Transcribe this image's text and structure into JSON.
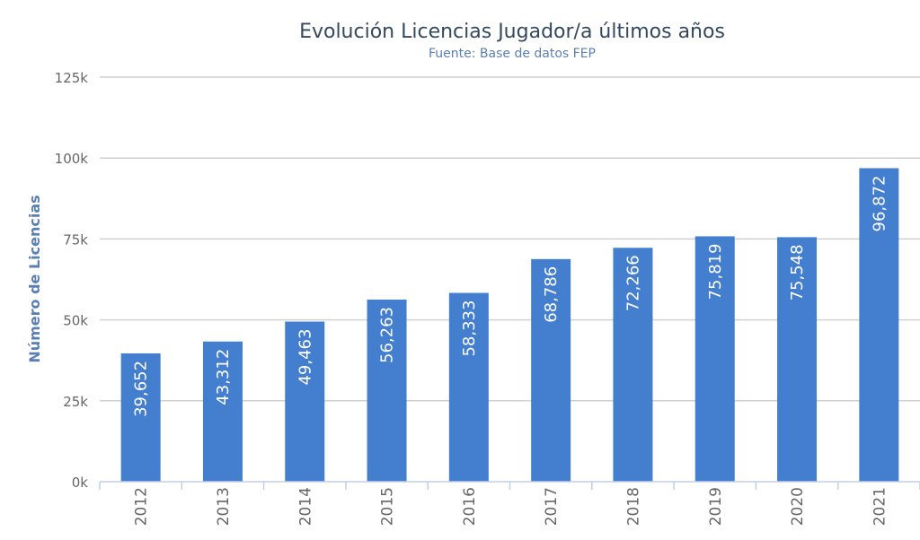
{
  "chart_data": {
    "type": "bar",
    "title": "Evolución Licencias Jugador/a últimos años",
    "subtitle": "Fuente: Base de datos FEP",
    "xlabel": "",
    "ylabel": "Número de Licencias",
    "categories": [
      "2012",
      "2013",
      "2014",
      "2015",
      "2016",
      "2017",
      "2018",
      "2019",
      "2020",
      "2021"
    ],
    "values": [
      39652,
      43312,
      49463,
      56263,
      58333,
      68786,
      72266,
      75819,
      75548,
      96872
    ],
    "data_labels": [
      "39,652",
      "43,312",
      "49,463",
      "56,263",
      "58,333",
      "68,786",
      "72,266",
      "75,819",
      "75,548",
      "96,872"
    ],
    "ylim": [
      0,
      125000
    ],
    "yticks": [
      0,
      25000,
      50000,
      75000,
      100000,
      125000
    ],
    "ytick_labels": [
      "0k",
      "25k",
      "50k",
      "75k",
      "100k",
      "125k"
    ],
    "grid": true,
    "legend": "none",
    "bar_color": "#447ecf"
  }
}
